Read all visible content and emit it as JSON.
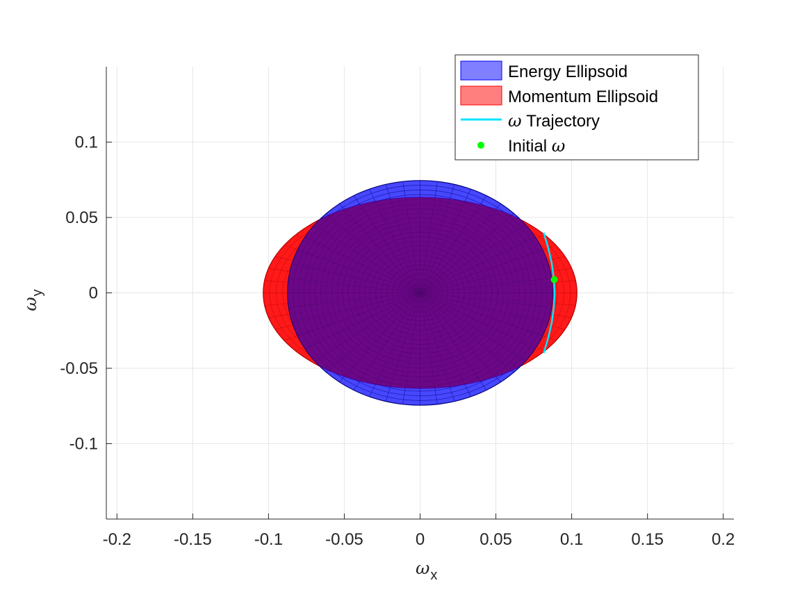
{
  "chart_data": {
    "type": "surface-projection",
    "xlabel": {
      "symbol": "ω",
      "subscript": "x"
    },
    "ylabel": {
      "symbol": "ω",
      "subscript": "y"
    },
    "xlim": [
      -0.207,
      0.207
    ],
    "ylim": [
      -0.15,
      0.15
    ],
    "xticks": [
      -0.2,
      -0.15,
      -0.1,
      -0.05,
      0,
      0.05,
      0.1,
      0.15,
      0.2
    ],
    "xtick_labels": [
      "-0.2",
      "-0.15",
      "-0.1",
      "-0.05",
      "0",
      "0.05",
      "0.1",
      "0.15",
      "0.2"
    ],
    "yticks": [
      -0.1,
      -0.05,
      0,
      0.05,
      0.1
    ],
    "ytick_labels": [
      "-0.1",
      "-0.05",
      "0",
      "0.05",
      "0.1"
    ],
    "grid": true,
    "legend_position": "top-right",
    "series": [
      {
        "name": "Energy Ellipsoid",
        "kind": "ellipsoid",
        "color": "#0000ff",
        "center": [
          0,
          0
        ],
        "semi_axes": [
          0.0875,
          0.0745
        ]
      },
      {
        "name": "Momentum Ellipsoid",
        "kind": "ellipsoid",
        "color": "#ff0000",
        "center": [
          0,
          0
        ],
        "semi_axes": [
          0.1035,
          0.0633
        ]
      },
      {
        "name": "Trajectory",
        "symbol": "ω",
        "kind": "line",
        "color": "#00e5ff",
        "x": [
          0.0815,
          0.0845,
          0.0868,
          0.0882,
          0.0888,
          0.0882,
          0.0868,
          0.0845,
          0.0815
        ],
        "y": [
          0.04,
          0.03,
          0.02,
          0.01,
          0.0,
          -0.01,
          -0.02,
          -0.03,
          -0.04
        ]
      },
      {
        "name": "Initial",
        "symbol": "ω",
        "kind": "point",
        "color": "#00ff00",
        "x": [
          0.0885
        ],
        "y": [
          0.0088
        ]
      }
    ]
  }
}
